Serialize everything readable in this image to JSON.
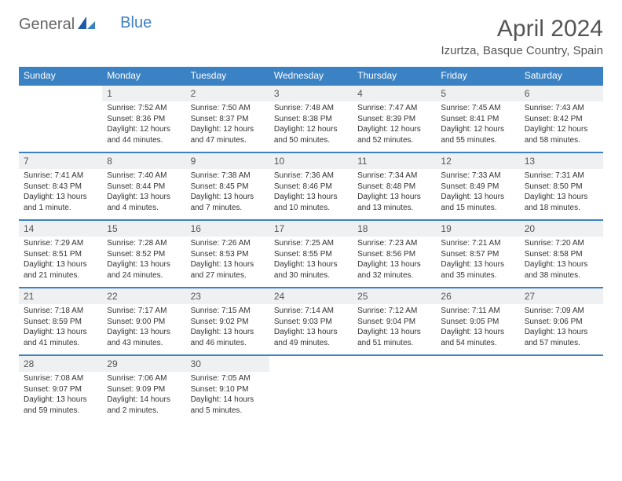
{
  "logo": {
    "part1": "General",
    "part2": "Blue"
  },
  "title": "April 2024",
  "location": "Izurtza, Basque Country, Spain",
  "colors": {
    "header_bg": "#3b82c4",
    "header_text": "#ffffff",
    "daynum_bg": "#eef0f1",
    "border": "#3b82c4",
    "text": "#333333",
    "title_text": "#555555"
  },
  "weekdays": [
    "Sunday",
    "Monday",
    "Tuesday",
    "Wednesday",
    "Thursday",
    "Friday",
    "Saturday"
  ],
  "weeks": [
    [
      null,
      {
        "n": "1",
        "sr": "Sunrise: 7:52 AM",
        "ss": "Sunset: 8:36 PM",
        "d1": "Daylight: 12 hours",
        "d2": "and 44 minutes."
      },
      {
        "n": "2",
        "sr": "Sunrise: 7:50 AM",
        "ss": "Sunset: 8:37 PM",
        "d1": "Daylight: 12 hours",
        "d2": "and 47 minutes."
      },
      {
        "n": "3",
        "sr": "Sunrise: 7:48 AM",
        "ss": "Sunset: 8:38 PM",
        "d1": "Daylight: 12 hours",
        "d2": "and 50 minutes."
      },
      {
        "n": "4",
        "sr": "Sunrise: 7:47 AM",
        "ss": "Sunset: 8:39 PM",
        "d1": "Daylight: 12 hours",
        "d2": "and 52 minutes."
      },
      {
        "n": "5",
        "sr": "Sunrise: 7:45 AM",
        "ss": "Sunset: 8:41 PM",
        "d1": "Daylight: 12 hours",
        "d2": "and 55 minutes."
      },
      {
        "n": "6",
        "sr": "Sunrise: 7:43 AM",
        "ss": "Sunset: 8:42 PM",
        "d1": "Daylight: 12 hours",
        "d2": "and 58 minutes."
      }
    ],
    [
      {
        "n": "7",
        "sr": "Sunrise: 7:41 AM",
        "ss": "Sunset: 8:43 PM",
        "d1": "Daylight: 13 hours",
        "d2": "and 1 minute."
      },
      {
        "n": "8",
        "sr": "Sunrise: 7:40 AM",
        "ss": "Sunset: 8:44 PM",
        "d1": "Daylight: 13 hours",
        "d2": "and 4 minutes."
      },
      {
        "n": "9",
        "sr": "Sunrise: 7:38 AM",
        "ss": "Sunset: 8:45 PM",
        "d1": "Daylight: 13 hours",
        "d2": "and 7 minutes."
      },
      {
        "n": "10",
        "sr": "Sunrise: 7:36 AM",
        "ss": "Sunset: 8:46 PM",
        "d1": "Daylight: 13 hours",
        "d2": "and 10 minutes."
      },
      {
        "n": "11",
        "sr": "Sunrise: 7:34 AM",
        "ss": "Sunset: 8:48 PM",
        "d1": "Daylight: 13 hours",
        "d2": "and 13 minutes."
      },
      {
        "n": "12",
        "sr": "Sunrise: 7:33 AM",
        "ss": "Sunset: 8:49 PM",
        "d1": "Daylight: 13 hours",
        "d2": "and 15 minutes."
      },
      {
        "n": "13",
        "sr": "Sunrise: 7:31 AM",
        "ss": "Sunset: 8:50 PM",
        "d1": "Daylight: 13 hours",
        "d2": "and 18 minutes."
      }
    ],
    [
      {
        "n": "14",
        "sr": "Sunrise: 7:29 AM",
        "ss": "Sunset: 8:51 PM",
        "d1": "Daylight: 13 hours",
        "d2": "and 21 minutes."
      },
      {
        "n": "15",
        "sr": "Sunrise: 7:28 AM",
        "ss": "Sunset: 8:52 PM",
        "d1": "Daylight: 13 hours",
        "d2": "and 24 minutes."
      },
      {
        "n": "16",
        "sr": "Sunrise: 7:26 AM",
        "ss": "Sunset: 8:53 PM",
        "d1": "Daylight: 13 hours",
        "d2": "and 27 minutes."
      },
      {
        "n": "17",
        "sr": "Sunrise: 7:25 AM",
        "ss": "Sunset: 8:55 PM",
        "d1": "Daylight: 13 hours",
        "d2": "and 30 minutes."
      },
      {
        "n": "18",
        "sr": "Sunrise: 7:23 AM",
        "ss": "Sunset: 8:56 PM",
        "d1": "Daylight: 13 hours",
        "d2": "and 32 minutes."
      },
      {
        "n": "19",
        "sr": "Sunrise: 7:21 AM",
        "ss": "Sunset: 8:57 PM",
        "d1": "Daylight: 13 hours",
        "d2": "and 35 minutes."
      },
      {
        "n": "20",
        "sr": "Sunrise: 7:20 AM",
        "ss": "Sunset: 8:58 PM",
        "d1": "Daylight: 13 hours",
        "d2": "and 38 minutes."
      }
    ],
    [
      {
        "n": "21",
        "sr": "Sunrise: 7:18 AM",
        "ss": "Sunset: 8:59 PM",
        "d1": "Daylight: 13 hours",
        "d2": "and 41 minutes."
      },
      {
        "n": "22",
        "sr": "Sunrise: 7:17 AM",
        "ss": "Sunset: 9:00 PM",
        "d1": "Daylight: 13 hours",
        "d2": "and 43 minutes."
      },
      {
        "n": "23",
        "sr": "Sunrise: 7:15 AM",
        "ss": "Sunset: 9:02 PM",
        "d1": "Daylight: 13 hours",
        "d2": "and 46 minutes."
      },
      {
        "n": "24",
        "sr": "Sunrise: 7:14 AM",
        "ss": "Sunset: 9:03 PM",
        "d1": "Daylight: 13 hours",
        "d2": "and 49 minutes."
      },
      {
        "n": "25",
        "sr": "Sunrise: 7:12 AM",
        "ss": "Sunset: 9:04 PM",
        "d1": "Daylight: 13 hours",
        "d2": "and 51 minutes."
      },
      {
        "n": "26",
        "sr": "Sunrise: 7:11 AM",
        "ss": "Sunset: 9:05 PM",
        "d1": "Daylight: 13 hours",
        "d2": "and 54 minutes."
      },
      {
        "n": "27",
        "sr": "Sunrise: 7:09 AM",
        "ss": "Sunset: 9:06 PM",
        "d1": "Daylight: 13 hours",
        "d2": "and 57 minutes."
      }
    ],
    [
      {
        "n": "28",
        "sr": "Sunrise: 7:08 AM",
        "ss": "Sunset: 9:07 PM",
        "d1": "Daylight: 13 hours",
        "d2": "and 59 minutes."
      },
      {
        "n": "29",
        "sr": "Sunrise: 7:06 AM",
        "ss": "Sunset: 9:09 PM",
        "d1": "Daylight: 14 hours",
        "d2": "and 2 minutes."
      },
      {
        "n": "30",
        "sr": "Sunrise: 7:05 AM",
        "ss": "Sunset: 9:10 PM",
        "d1": "Daylight: 14 hours",
        "d2": "and 5 minutes."
      },
      null,
      null,
      null,
      null
    ]
  ]
}
